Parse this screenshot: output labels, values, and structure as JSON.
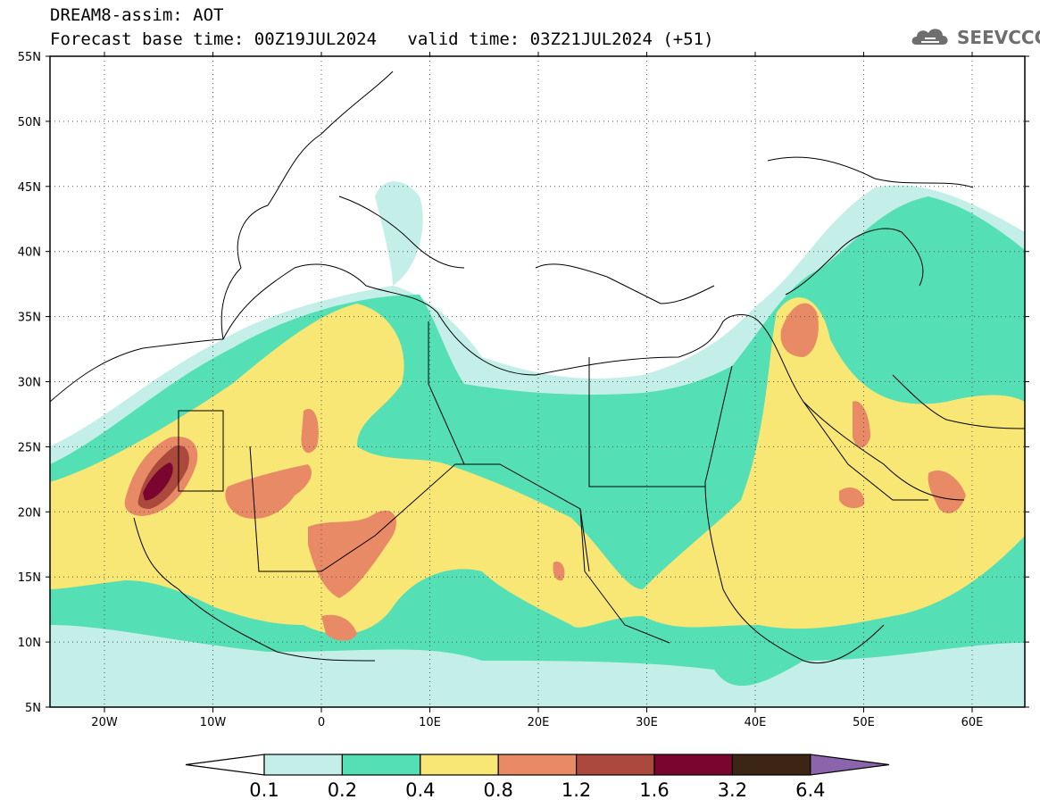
{
  "header": {
    "line1": "DREAM8-assim: AOT",
    "base_time": "Forecast base time: 00Z19JUL2024",
    "valid_time": "valid time: 03Z21JUL2024 (+51)"
  },
  "logo": {
    "text": "SEEVCCC",
    "icon": "cloud-icon"
  },
  "map": {
    "lon_labels": [
      "20W",
      "10W",
      "0",
      "10E",
      "20E",
      "30E",
      "40E",
      "50E",
      "60E"
    ],
    "lat_labels": [
      "55N",
      "50N",
      "45N",
      "40N",
      "35N",
      "30N",
      "25N",
      "20N",
      "15N",
      "10N",
      "5N"
    ],
    "gridlines": "dotted"
  },
  "legend": {
    "ticks": [
      "0.1",
      "0.2",
      "0.4",
      "0.8",
      "1.2",
      "1.6",
      "3.2",
      "6.4"
    ],
    "colors": [
      "#ffffff",
      "#c4efe8",
      "#55dfb5",
      "#f8e675",
      "#e88a66",
      "#ab4a3c",
      "#7a0630",
      "#3c2515",
      "#8c64ac"
    ]
  }
}
